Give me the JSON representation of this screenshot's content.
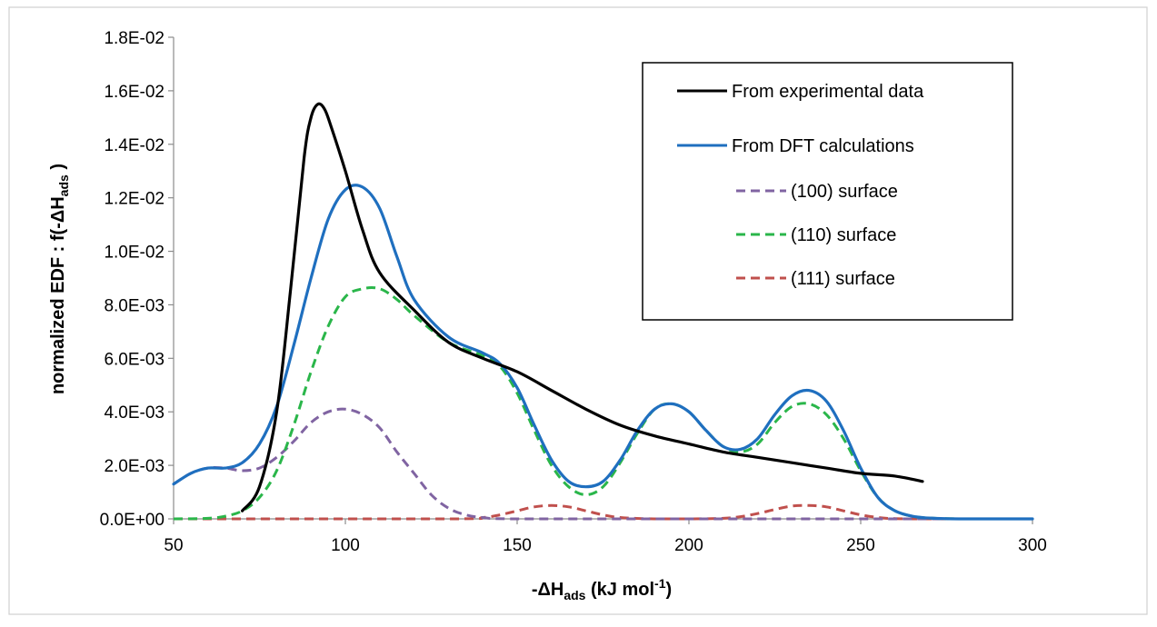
{
  "chart_data": {
    "type": "line",
    "xlabel": {
      "main": "-ΔH",
      "sub": "ads",
      "tail": " (kJ mol",
      "sup": "-1",
      "end": ")"
    },
    "ylabel": {
      "main": "normalized EDF : f(-ΔH",
      "sub": "ads",
      "end": " )"
    },
    "xlim": [
      50,
      300
    ],
    "ylim": [
      0,
      0.018
    ],
    "x_ticks": [
      50,
      100,
      150,
      200,
      250,
      300
    ],
    "x_tick_labels": [
      "50",
      "100",
      "150",
      "200",
      "250",
      "300"
    ],
    "y_ticks": [
      0,
      0.002,
      0.004,
      0.006,
      0.008,
      0.01,
      0.012,
      0.014,
      0.016,
      0.018
    ],
    "y_tick_labels": [
      "0.0E+00",
      "2.0E-03",
      "4.0E-03",
      "6.0E-03",
      "8.0E-03",
      "1.0E-02",
      "1.2E-02",
      "1.4E-02",
      "1.6E-02",
      "1.8E-02"
    ],
    "grid": false,
    "legend_position": "top-right",
    "series": [
      {
        "name": "From experimental data",
        "color": "#000000",
        "dash": "solid",
        "x": [
          70,
          75,
          80,
          84,
          88,
          90,
          92,
          94,
          96,
          100,
          105,
          110,
          120,
          130,
          140,
          150,
          160,
          170,
          180,
          190,
          200,
          210,
          220,
          230,
          240,
          250,
          260,
          268
        ],
        "y": [
          0.0003,
          0.0012,
          0.004,
          0.0085,
          0.0135,
          0.015,
          0.0155,
          0.0153,
          0.0146,
          0.013,
          0.0108,
          0.0092,
          0.0078,
          0.0066,
          0.006,
          0.0055,
          0.0048,
          0.0041,
          0.0035,
          0.0031,
          0.0028,
          0.0025,
          0.0023,
          0.0021,
          0.0019,
          0.0017,
          0.0016,
          0.0014
        ]
      },
      {
        "name": "From DFT calculations",
        "color": "#1f6fbf",
        "dash": "solid",
        "x": [
          50,
          55,
          60,
          65,
          70,
          75,
          80,
          85,
          90,
          95,
          100,
          105,
          110,
          115,
          120,
          130,
          140,
          145,
          150,
          155,
          160,
          165,
          170,
          175,
          180,
          185,
          190,
          195,
          200,
          205,
          210,
          215,
          220,
          225,
          230,
          235,
          240,
          245,
          250,
          255,
          260,
          265,
          270,
          280,
          300
        ],
        "y": [
          0.0013,
          0.0017,
          0.0019,
          0.0019,
          0.0021,
          0.0028,
          0.0042,
          0.0065,
          0.009,
          0.0112,
          0.0123,
          0.0124,
          0.0116,
          0.0098,
          0.0082,
          0.0068,
          0.0062,
          0.0058,
          0.0049,
          0.0035,
          0.0022,
          0.0014,
          0.0012,
          0.0014,
          0.0022,
          0.0033,
          0.0041,
          0.0043,
          0.004,
          0.0033,
          0.0027,
          0.0026,
          0.003,
          0.0039,
          0.0046,
          0.0048,
          0.0044,
          0.0033,
          0.0019,
          0.0008,
          0.0003,
          0.0001,
          3e-05,
          0.0,
          0.0
        ]
      },
      {
        "name": "(100) surface",
        "color": "#8064a2",
        "dash": "dashed",
        "x": [
          50,
          55,
          60,
          65,
          70,
          75,
          80,
          85,
          90,
          95,
          100,
          105,
          110,
          115,
          120,
          125,
          130,
          135,
          140,
          150,
          200,
          250,
          300
        ],
        "y": [
          0.0013,
          0.0017,
          0.0019,
          0.0019,
          0.0018,
          0.0019,
          0.0023,
          0.0029,
          0.0036,
          0.004,
          0.0041,
          0.0039,
          0.0034,
          0.0025,
          0.0017,
          0.0009,
          0.0004,
          0.00015,
          5e-05,
          0.0,
          0.0,
          0.0,
          0.0
        ]
      },
      {
        "name": "(110) surface",
        "color": "#2ab64a",
        "dash": "dashed",
        "x": [
          50,
          60,
          65,
          70,
          75,
          80,
          85,
          90,
          95,
          100,
          105,
          110,
          115,
          120,
          130,
          140,
          145,
          150,
          155,
          160,
          165,
          170,
          175,
          180,
          185,
          190,
          195,
          200,
          205,
          210,
          215,
          220,
          225,
          230,
          235,
          240,
          245,
          250,
          255,
          260,
          265,
          270,
          280,
          300
        ],
        "y": [
          0.0,
          2e-05,
          0.0001,
          0.0003,
          0.0008,
          0.0018,
          0.0035,
          0.0055,
          0.0072,
          0.0083,
          0.0086,
          0.0086,
          0.0082,
          0.0076,
          0.0066,
          0.0061,
          0.0057,
          0.0047,
          0.0033,
          0.002,
          0.0012,
          0.0009,
          0.0012,
          0.0021,
          0.0032,
          0.0041,
          0.0043,
          0.004,
          0.0033,
          0.0027,
          0.0025,
          0.0028,
          0.0036,
          0.0042,
          0.0043,
          0.0039,
          0.003,
          0.0018,
          0.0008,
          0.0003,
          0.0001,
          3e-05,
          0.0,
          0.0
        ]
      },
      {
        "name": "(111) surface",
        "color": "#c0504d",
        "dash": "dashed",
        "x": [
          50,
          130,
          140,
          145,
          150,
          155,
          160,
          165,
          170,
          175,
          180,
          190,
          200,
          210,
          215,
          220,
          225,
          230,
          235,
          240,
          245,
          250,
          255,
          260,
          270,
          300
        ],
        "y": [
          0.0,
          0.0,
          5e-05,
          0.00015,
          0.0003,
          0.00045,
          0.0005,
          0.00045,
          0.0003,
          0.00015,
          5e-05,
          0.0,
          0.0,
          2e-05,
          8e-05,
          0.0002,
          0.00035,
          0.00048,
          0.0005,
          0.00045,
          0.0003,
          0.00015,
          5e-05,
          1e-05,
          0.0,
          0.0
        ]
      }
    ]
  }
}
